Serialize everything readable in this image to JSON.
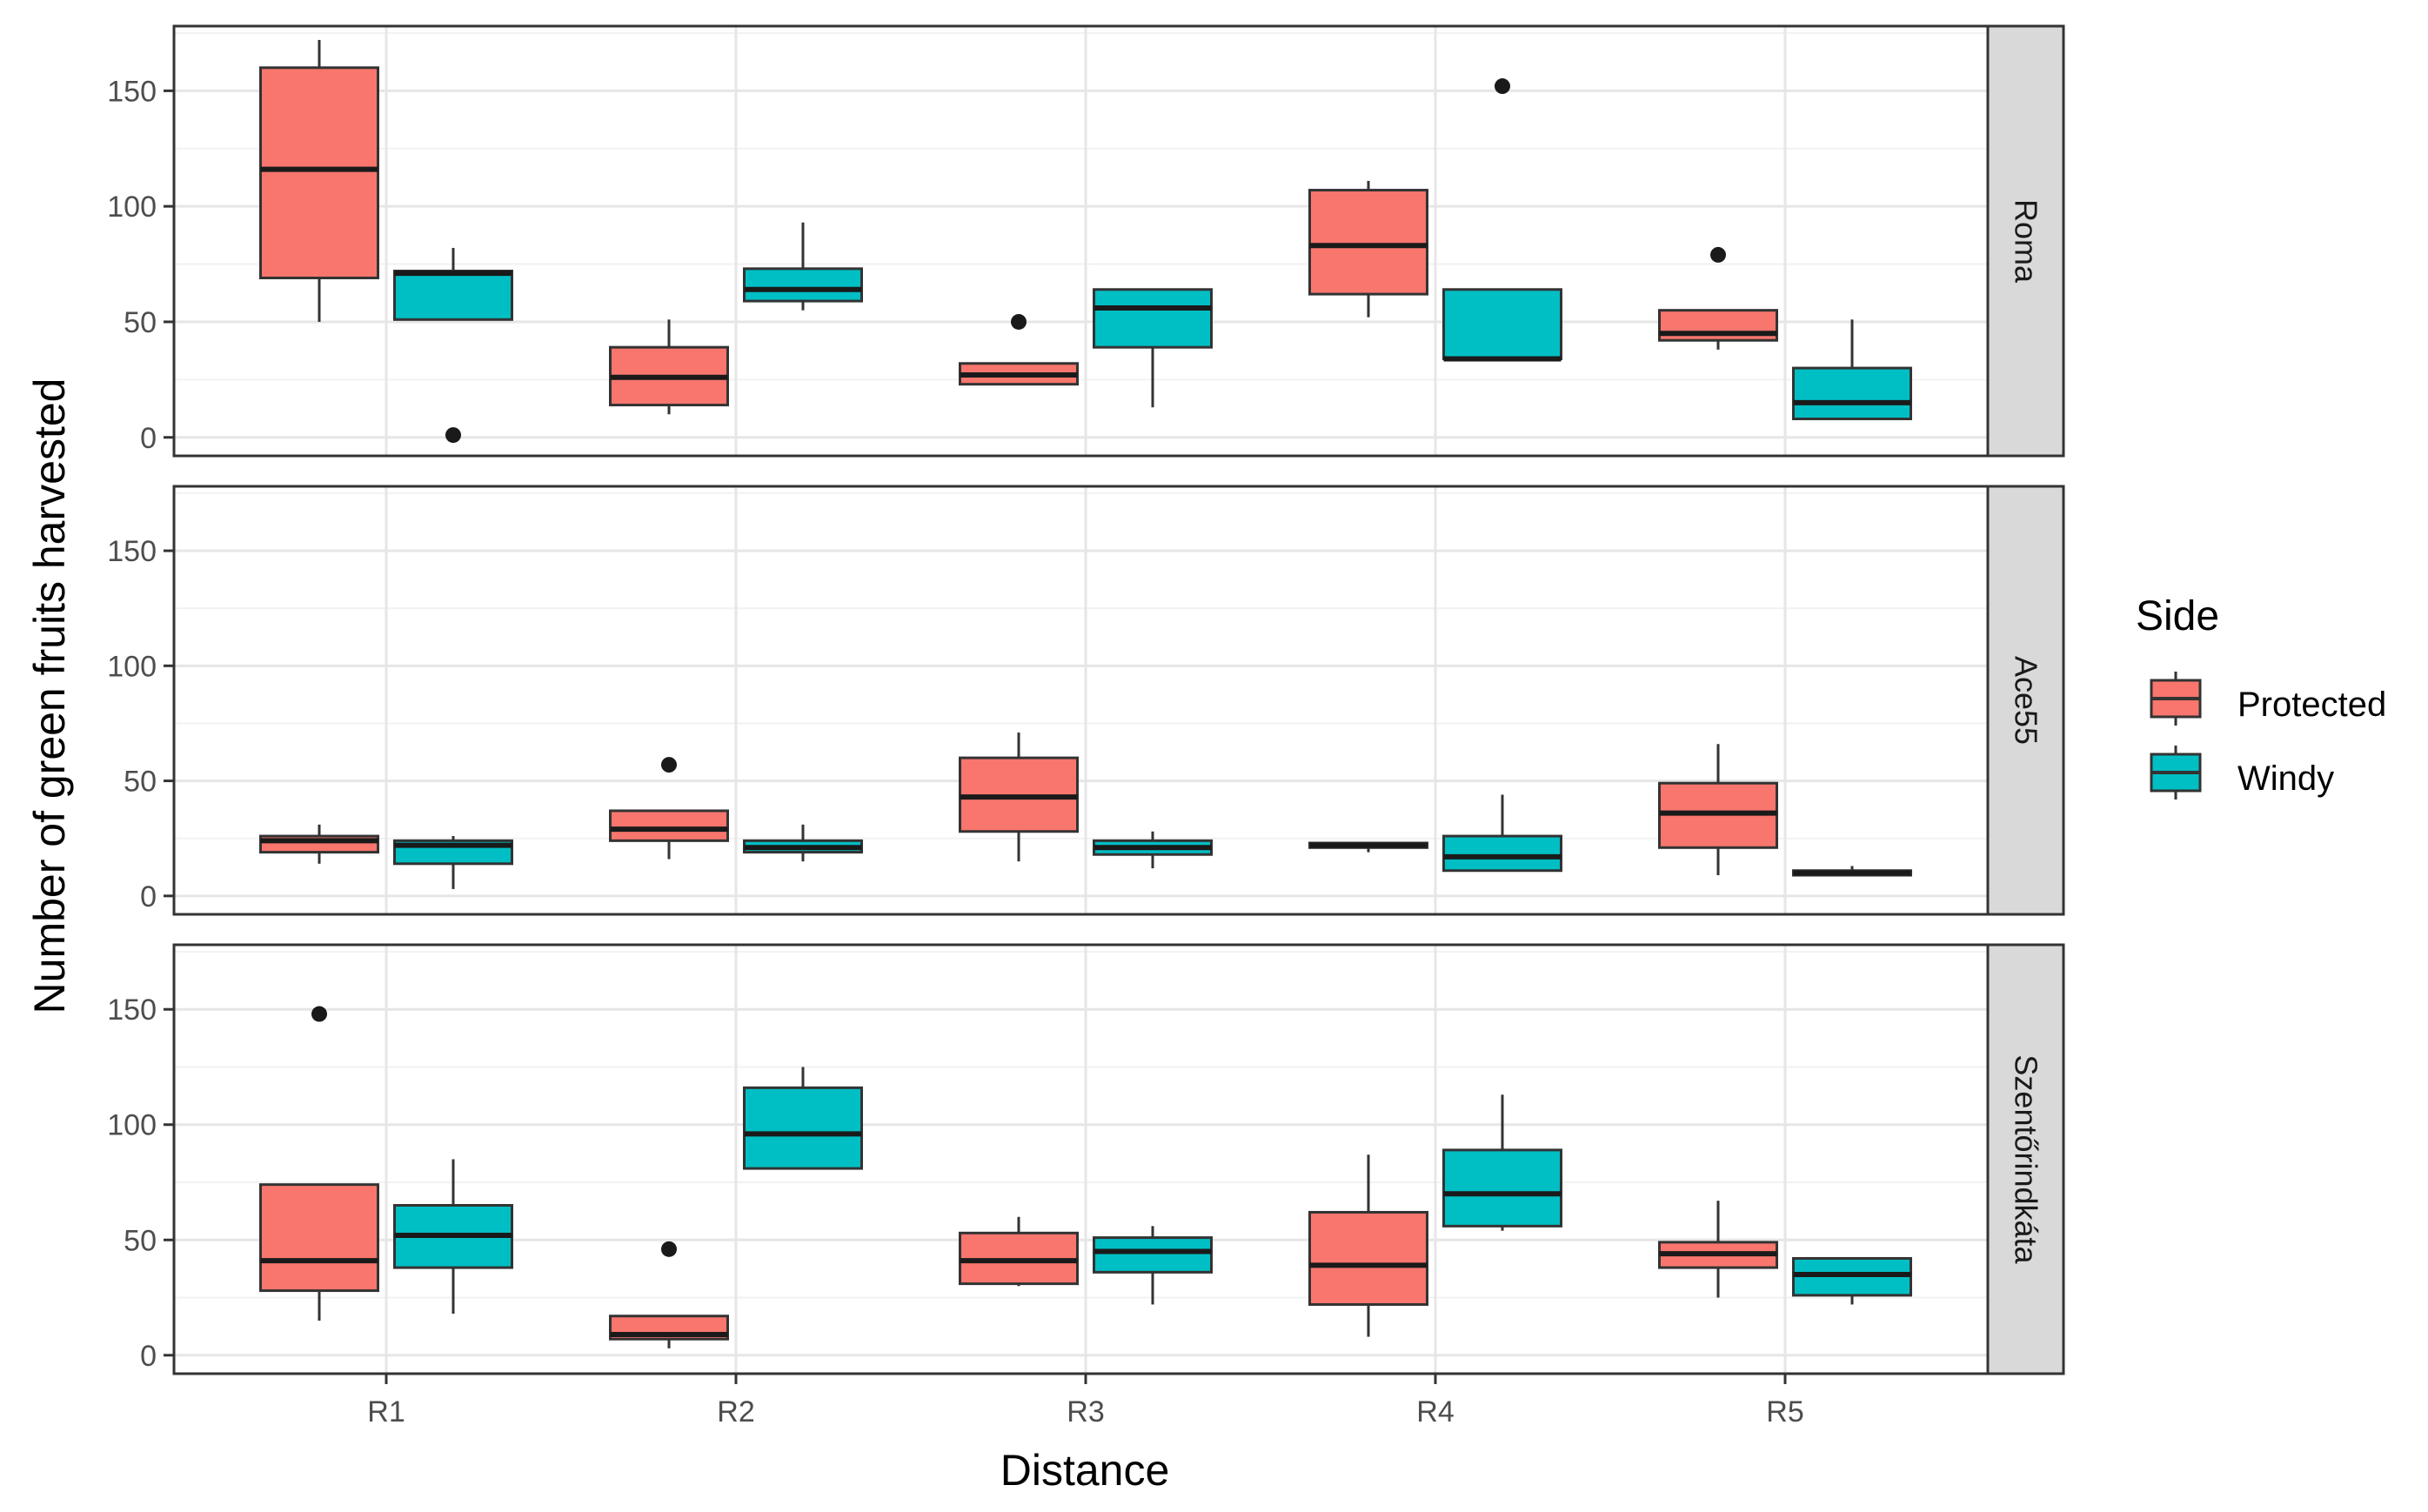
{
  "chart_data": {
    "type": "boxplot",
    "xlabel": "Distance",
    "ylabel": "Number of green fruits harvested",
    "categories": [
      "R1",
      "R2",
      "R3",
      "R4",
      "R5"
    ],
    "ylim": [
      -8,
      178
    ],
    "yticks": [
      0,
      50,
      100,
      150
    ],
    "grid": true,
    "legend": {
      "title": "Side",
      "position": "right",
      "entries": [
        {
          "name": "Protected",
          "color": "#F8766D"
        },
        {
          "name": "Windy",
          "color": "#00BFC4"
        }
      ]
    },
    "panels": [
      {
        "name": "Roma",
        "series": [
          {
            "name": "Protected",
            "boxes": [
              {
                "min": 50,
                "q1": 69,
                "median": 116,
                "q3": 160,
                "max": 172,
                "outliers": []
              },
              {
                "min": 10,
                "q1": 14,
                "median": 26,
                "q3": 39,
                "max": 51,
                "outliers": []
              },
              {
                "min": 23,
                "q1": 23,
                "median": 27,
                "q3": 32,
                "max": 32,
                "outliers": [
                  50
                ]
              },
              {
                "min": 52,
                "q1": 62,
                "median": 83,
                "q3": 107,
                "max": 111,
                "outliers": []
              },
              {
                "min": 38,
                "q1": 42,
                "median": 45,
                "q3": 55,
                "max": 55,
                "outliers": [
                  79
                ]
              }
            ]
          },
          {
            "name": "Windy",
            "boxes": [
              {
                "min": 51,
                "q1": 51,
                "median": 71,
                "q3": 72,
                "max": 82,
                "outliers": [
                  1
                ]
              },
              {
                "min": 55,
                "q1": 59,
                "median": 64,
                "q3": 73,
                "max": 93,
                "outliers": []
              },
              {
                "min": 13,
                "q1": 39,
                "median": 56,
                "q3": 64,
                "max": 64,
                "outliers": []
              },
              {
                "min": 34,
                "q1": 34,
                "median": 34,
                "q3": 64,
                "max": 64,
                "outliers": [
                  152
                ]
              },
              {
                "min": 8,
                "q1": 8,
                "median": 15,
                "q3": 30,
                "max": 51,
                "outliers": []
              }
            ]
          }
        ]
      },
      {
        "name": "Ace55",
        "series": [
          {
            "name": "Protected",
            "boxes": [
              {
                "min": 14,
                "q1": 19,
                "median": 24,
                "q3": 26,
                "max": 31,
                "outliers": []
              },
              {
                "min": 16,
                "q1": 24,
                "median": 29,
                "q3": 37,
                "max": 37,
                "outliers": [
                  57
                ]
              },
              {
                "min": 15,
                "q1": 28,
                "median": 43,
                "q3": 60,
                "max": 71,
                "outliers": []
              },
              {
                "min": 19,
                "q1": 21,
                "median": 22,
                "q3": 23,
                "max": 23,
                "outliers": []
              },
              {
                "min": 9,
                "q1": 21,
                "median": 36,
                "q3": 49,
                "max": 66,
                "outliers": []
              }
            ]
          },
          {
            "name": "Windy",
            "boxes": [
              {
                "min": 3,
                "q1": 14,
                "median": 22,
                "q3": 24,
                "max": 26,
                "outliers": []
              },
              {
                "min": 15,
                "q1": 19,
                "median": 21,
                "q3": 24,
                "max": 31,
                "outliers": []
              },
              {
                "min": 12,
                "q1": 18,
                "median": 21,
                "q3": 24,
                "max": 28,
                "outliers": []
              },
              {
                "min": 11,
                "q1": 11,
                "median": 17,
                "q3": 26,
                "max": 44,
                "outliers": []
              },
              {
                "min": 9,
                "q1": 9,
                "median": 10,
                "q3": 11,
                "max": 13,
                "outliers": []
              }
            ]
          }
        ]
      },
      {
        "name": "Szentőrindkáta",
        "series": [
          {
            "name": "Protected",
            "boxes": [
              {
                "min": 15,
                "q1": 28,
                "median": 41,
                "q3": 74,
                "max": 74,
                "outliers": [
                  148
                ]
              },
              {
                "min": 3,
                "q1": 7,
                "median": 9,
                "q3": 17,
                "max": 17,
                "outliers": [
                  46
                ]
              },
              {
                "min": 30,
                "q1": 31,
                "median": 41,
                "q3": 53,
                "max": 60,
                "outliers": []
              },
              {
                "min": 8,
                "q1": 22,
                "median": 39,
                "q3": 62,
                "max": 87,
                "outliers": []
              },
              {
                "min": 25,
                "q1": 38,
                "median": 44,
                "q3": 49,
                "max": 67,
                "outliers": []
              }
            ]
          },
          {
            "name": "Windy",
            "boxes": [
              {
                "min": 18,
                "q1": 38,
                "median": 52,
                "q3": 65,
                "max": 85,
                "outliers": []
              },
              {
                "min": 81,
                "q1": 81,
                "median": 96,
                "q3": 116,
                "max": 125,
                "outliers": []
              },
              {
                "min": 22,
                "q1": 36,
                "median": 45,
                "q3": 51,
                "max": 56,
                "outliers": []
              },
              {
                "min": 54,
                "q1": 56,
                "median": 70,
                "q3": 89,
                "max": 113,
                "outliers": []
              },
              {
                "min": 22,
                "q1": 26,
                "median": 35,
                "q3": 42,
                "max": 42,
                "outliers": []
              }
            ]
          }
        ]
      }
    ]
  }
}
